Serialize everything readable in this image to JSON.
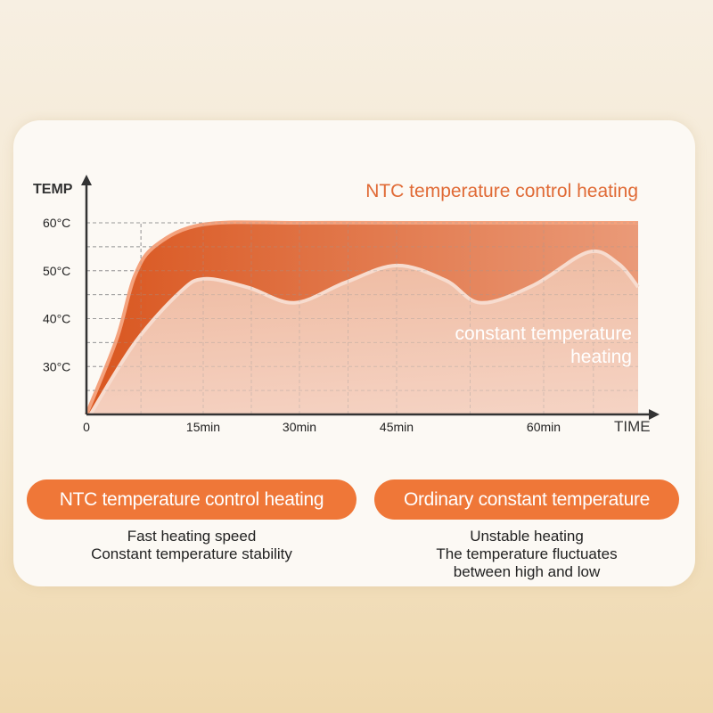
{
  "chart_data": {
    "type": "area",
    "title": "",
    "xlabel": "TIME",
    "ylabel": "TEMP",
    "x_ticks": [
      {
        "value": 0,
        "label": "0"
      },
      {
        "value": 15,
        "label": "15min"
      },
      {
        "value": 30,
        "label": "30min"
      },
      {
        "value": 45,
        "label": "45min"
      },
      {
        "value": 60,
        "label": "60min"
      }
    ],
    "y_ticks": [
      {
        "value": 30,
        "label": "30°C"
      },
      {
        "value": 40,
        "label": "40°C"
      },
      {
        "value": 50,
        "label": "50°C"
      },
      {
        "value": 60,
        "label": "60°C"
      }
    ],
    "ylim": [
      20,
      62
    ],
    "xlim": [
      0,
      69.5
    ],
    "grid": true,
    "series": [
      {
        "name": "NTC temperature control heating",
        "color": "#e0652e",
        "points": [
          [
            0,
            20
          ],
          [
            3.9,
            35.8
          ],
          [
            6.2,
            48.9
          ],
          [
            9,
            55.4
          ],
          [
            15.2,
            59.7
          ],
          [
            30,
            60
          ],
          [
            45,
            60
          ],
          [
            60,
            60
          ],
          [
            69.5,
            60
          ]
        ]
      },
      {
        "name": "constant temperature heating",
        "color": "#f6d7c8",
        "points": [
          [
            0.5,
            20
          ],
          [
            6.2,
            34.9
          ],
          [
            12,
            45.5
          ],
          [
            15.2,
            48.3
          ],
          [
            22,
            46.5
          ],
          [
            29.2,
            43.3
          ],
          [
            37,
            47.5
          ],
          [
            45,
            51.1
          ],
          [
            50,
            48
          ],
          [
            53.6,
            43.3
          ],
          [
            59,
            47
          ],
          [
            64.5,
            53.9
          ],
          [
            67.5,
            51.5
          ],
          [
            69.5,
            46.6
          ]
        ]
      }
    ]
  },
  "labels": {
    "ntc_series": "NTC temperature control heating",
    "constant_line1": "constant temperature",
    "constant_line2": "heating"
  },
  "comparison": [
    {
      "title": "NTC temperature control heating",
      "lines": [
        "Fast heating speed",
        "Constant temperature stability"
      ]
    },
    {
      "title": "Ordinary constant temperature",
      "lines": [
        "Unstable heating",
        "The temperature fluctuates",
        "between high and low"
      ]
    }
  ],
  "colors": {
    "accent": "#ef7738",
    "ntc_fill": "#e0652e",
    "constant_fill": "#f3c9b4",
    "axis": "#333333"
  }
}
